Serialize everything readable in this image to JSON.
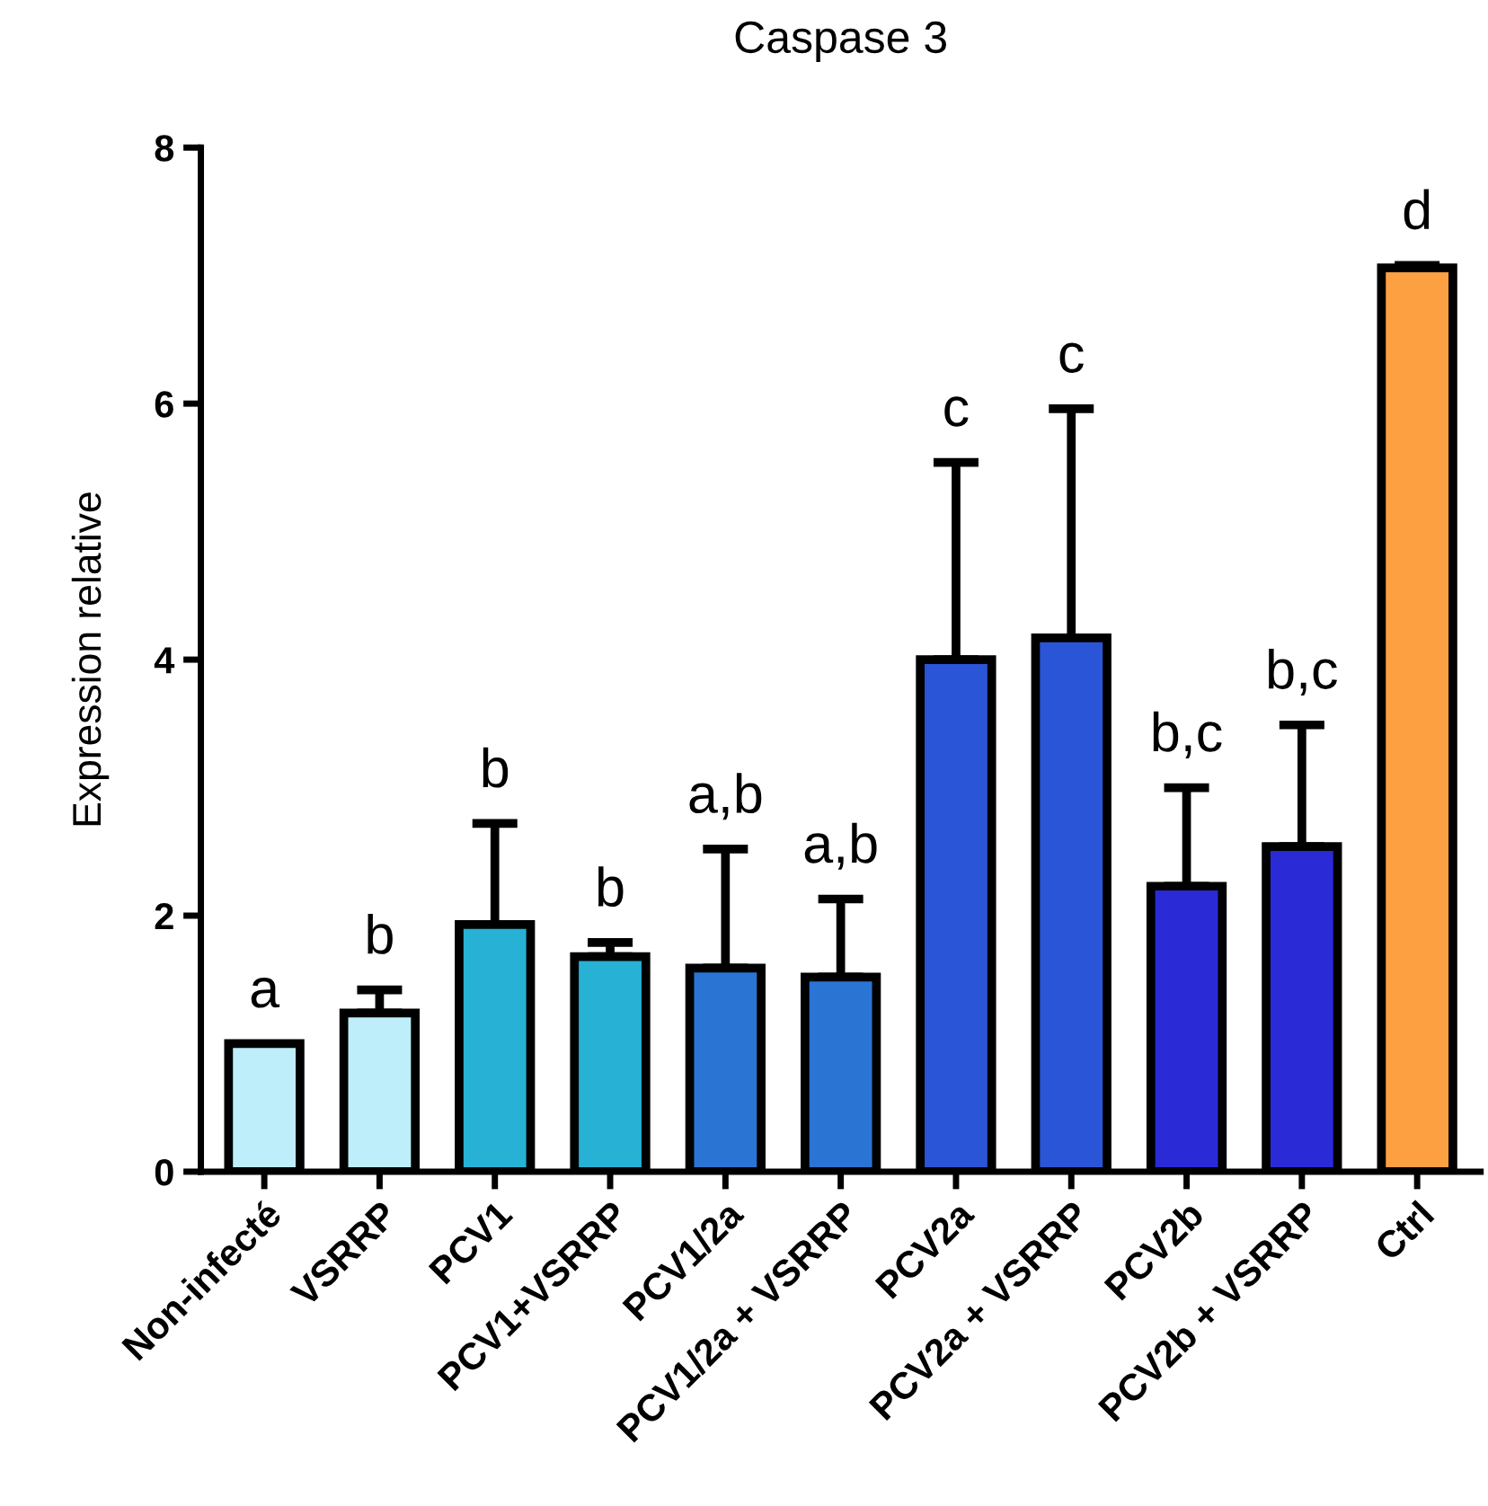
{
  "chart_data": {
    "type": "bar",
    "title": "Caspase 3",
    "ylabel": "Expression relative",
    "categories": [
      "Non-infecté",
      "VSRRP",
      "PCV1",
      "PCV1+VSRRP",
      "PCV1/2a",
      "PCV1/2a + VSRRP",
      "PCV2a",
      "PCV2a + VSRRP",
      "PCV2b",
      "PCV2b + VSRRP",
      "Ctrl"
    ],
    "values": [
      1.0,
      1.24,
      1.93,
      1.68,
      1.59,
      1.52,
      4.0,
      4.17,
      2.23,
      2.54,
      7.06
    ],
    "errors": [
      null,
      [
        1.24,
        1.42
      ],
      [
        1.93,
        2.72
      ],
      [
        1.68,
        1.79
      ],
      [
        1.59,
        2.52
      ],
      [
        1.52,
        2.13
      ],
      [
        4.0,
        5.54
      ],
      [
        4.17,
        5.96
      ],
      [
        2.23,
        3.0
      ],
      [
        2.54,
        3.49
      ],
      [
        7.06,
        7.08
      ]
    ],
    "colors": [
      "#bdeefa",
      "#bdeefa",
      "#27b1d5",
      "#27b1d5",
      "#2a74d4",
      "#2a74d4",
      "#2a55d6",
      "#2a55d6",
      "#2a2bd6",
      "#2a2bd6",
      "#fda042"
    ],
    "ylim": [
      0,
      8
    ],
    "yticks": [
      0,
      2,
      4,
      6,
      8
    ],
    "grid": false,
    "legend": false,
    "annotations": [
      {
        "text": "a",
        "x": "Non-infecté",
        "y": 1.0
      },
      {
        "text": "b",
        "x": "VSRRP",
        "y": 1.42
      },
      {
        "text": "b",
        "x": "PCV1",
        "y": 2.72
      },
      {
        "text": "b",
        "x": "PCV1+VSRRP",
        "y": 1.79
      },
      {
        "text": "a,b",
        "x": "PCV1/2a",
        "y": 2.52
      },
      {
        "text": "a,b",
        "x": "PCV1/2a + VSRRP",
        "y": 2.13
      },
      {
        "text": "c",
        "x": "PCV2a",
        "y": 5.54
      },
      {
        "text": "c",
        "x": "PCV2a + VSRRP",
        "y": 5.96
      },
      {
        "text": "b,c",
        "x": "PCV2b",
        "y": 3.0
      },
      {
        "text": "b,c",
        "x": "PCV2b + VSRRP",
        "y": 3.49
      },
      {
        "text": "d",
        "x": "Ctrl",
        "y": 7.08
      }
    ]
  }
}
